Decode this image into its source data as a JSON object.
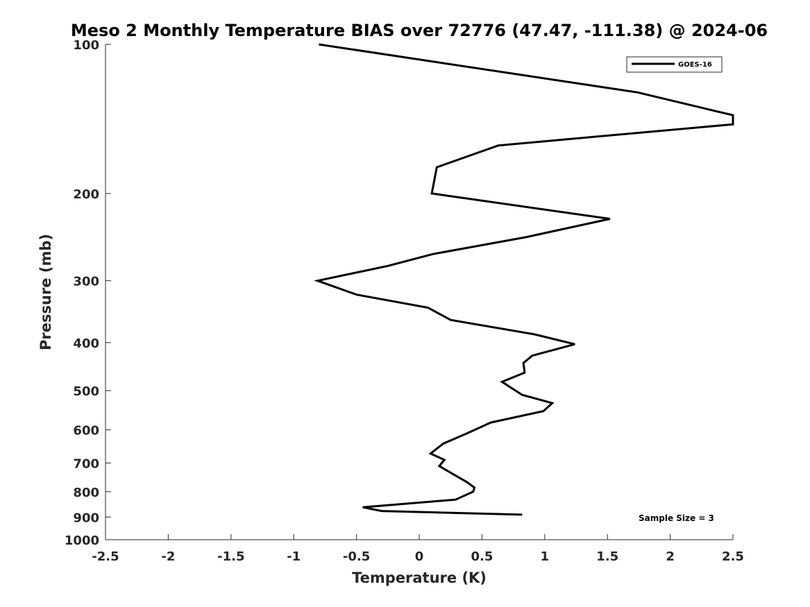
{
  "chart_data": {
    "type": "line",
    "title": "Meso 2 Monthly Temperature BIAS over 72776 (47.47, -111.38) @ 2024-06",
    "xlabel": "Temperature (K)",
    "ylabel": "Pressure (mb)",
    "xlim": [
      -2.5,
      2.5
    ],
    "ylim": [
      1000,
      100
    ],
    "y_scale": "log",
    "y_reversed": true,
    "x_ticks": [
      -2.5,
      -2,
      -1.5,
      -1,
      -0.5,
      0,
      0.5,
      1,
      1.5,
      2,
      2.5
    ],
    "x_tick_labels": [
      "-2.5",
      "-2",
      "-1.5",
      "-1",
      "-0.5",
      "0",
      "0.5",
      "1",
      "1.5",
      "2",
      "2.5"
    ],
    "y_ticks": [
      100,
      200,
      300,
      400,
      500,
      600,
      700,
      800,
      900,
      1000
    ],
    "y_tick_labels": [
      "100",
      "200",
      "300",
      "400",
      "500",
      "600",
      "700",
      "800",
      "900",
      "1000"
    ],
    "grid": false,
    "legend_position": "top-right",
    "series": [
      {
        "name": "GOES-16",
        "color": "#000000",
        "points": [
          {
            "x": -0.8,
            "p": 100
          },
          {
            "x": 1.74,
            "p": 125
          },
          {
            "x": 2.5,
            "p": 139
          },
          {
            "x": 2.5,
            "p": 145
          },
          {
            "x": 0.63,
            "p": 160
          },
          {
            "x": 0.14,
            "p": 177
          },
          {
            "x": 0.1,
            "p": 200
          },
          {
            "x": 1.52,
            "p": 225
          },
          {
            "x": 0.85,
            "p": 245
          },
          {
            "x": 0.11,
            "p": 265
          },
          {
            "x": -0.25,
            "p": 280
          },
          {
            "x": -0.81,
            "p": 300
          },
          {
            "x": -0.5,
            "p": 320
          },
          {
            "x": 0.07,
            "p": 340
          },
          {
            "x": 0.25,
            "p": 360
          },
          {
            "x": 0.92,
            "p": 385
          },
          {
            "x": 1.24,
            "p": 403
          },
          {
            "x": 0.9,
            "p": 425
          },
          {
            "x": 0.83,
            "p": 440
          },
          {
            "x": 0.84,
            "p": 460
          },
          {
            "x": 0.66,
            "p": 480
          },
          {
            "x": 0.82,
            "p": 510
          },
          {
            "x": 1.06,
            "p": 530
          },
          {
            "x": 0.99,
            "p": 550
          },
          {
            "x": 0.57,
            "p": 580
          },
          {
            "x": 0.38,
            "p": 610
          },
          {
            "x": 0.19,
            "p": 640
          },
          {
            "x": 0.09,
            "p": 670
          },
          {
            "x": 0.2,
            "p": 690
          },
          {
            "x": 0.16,
            "p": 710
          },
          {
            "x": 0.28,
            "p": 740
          },
          {
            "x": 0.38,
            "p": 765
          },
          {
            "x": 0.44,
            "p": 785
          },
          {
            "x": 0.43,
            "p": 800
          },
          {
            "x": 0.29,
            "p": 830
          },
          {
            "x": -0.45,
            "p": 860
          },
          {
            "x": -0.3,
            "p": 875
          },
          {
            "x": 0.82,
            "p": 890
          }
        ]
      }
    ],
    "legend": [
      {
        "label": "GOES-16",
        "color": "#000000"
      }
    ],
    "annotations": [
      {
        "text": "Sample Size = 3"
      }
    ]
  }
}
